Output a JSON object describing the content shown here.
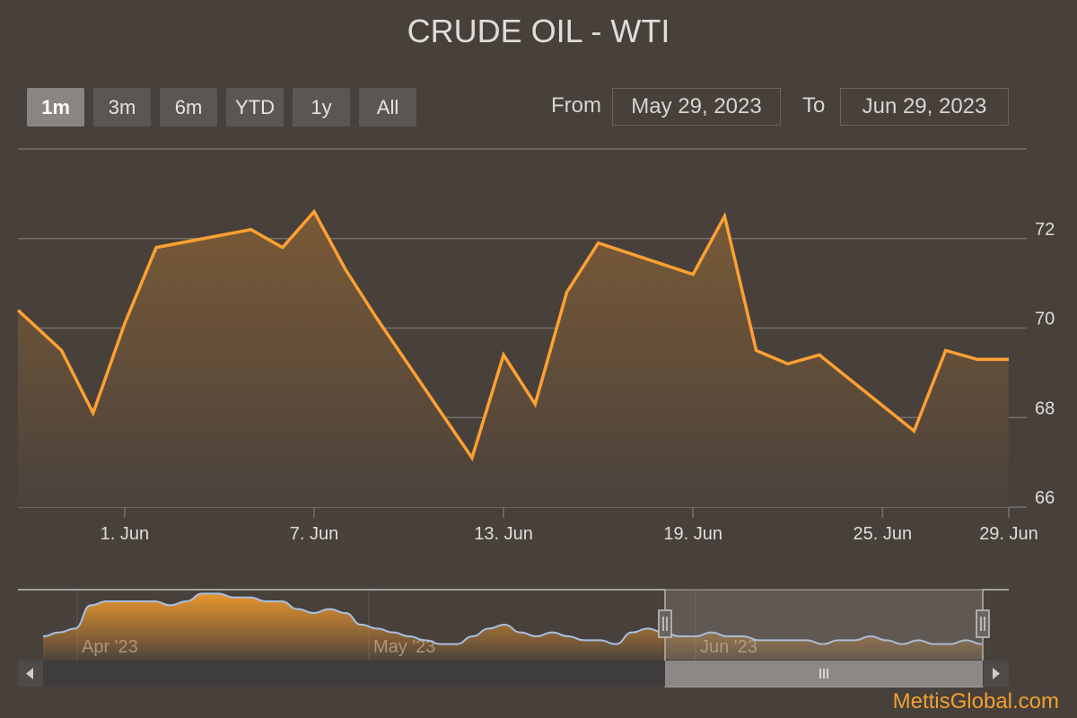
{
  "title": "CRUDE OIL - WTI",
  "range_buttons": [
    {
      "label": "1m",
      "active": true
    },
    {
      "label": "3m",
      "active": false
    },
    {
      "label": "6m",
      "active": false
    },
    {
      "label": "YTD",
      "active": false
    },
    {
      "label": "1y",
      "active": false
    },
    {
      "label": "All",
      "active": false
    }
  ],
  "date_range": {
    "from_label": "From",
    "from_value": "May 29, 2023",
    "to_label": "To",
    "to_value": "Jun 29, 2023"
  },
  "watermark": "MettisGlobal.com",
  "colors": {
    "line": "#ffa032",
    "fill_top": "#7a5a36",
    "fill_bottom": "#4a423c",
    "grid": "#75706c",
    "text": "#e0dcd8",
    "navigator_line": "#a8c0e0",
    "navigator_fill": "#e8962e"
  },
  "chart_data": {
    "type": "area",
    "title": "CRUDE OIL - WTI",
    "x": [
      "2023-05-29",
      "2023-05-30",
      "2023-05-31",
      "2023-06-01",
      "2023-06-02",
      "2023-06-05",
      "2023-06-06",
      "2023-06-07",
      "2023-06-08",
      "2023-06-09",
      "2023-06-12",
      "2023-06-13",
      "2023-06-14",
      "2023-06-15",
      "2023-06-16",
      "2023-06-19",
      "2023-06-20",
      "2023-06-21",
      "2023-06-22",
      "2023-06-23",
      "2023-06-26",
      "2023-06-27",
      "2023-06-28",
      "2023-06-29"
    ],
    "values": [
      70.4,
      69.5,
      68.1,
      70.1,
      71.8,
      72.2,
      71.8,
      72.6,
      71.3,
      70.2,
      67.1,
      69.4,
      68.3,
      70.8,
      71.9,
      71.2,
      72.5,
      69.5,
      69.2,
      69.4,
      67.7,
      69.5,
      69.3,
      69.3
    ],
    "ylim": [
      66,
      74
    ],
    "y_ticks": [
      66,
      68,
      70,
      72
    ],
    "x_tick_labels": [
      {
        "label": "1. Jun",
        "date": "2023-06-01"
      },
      {
        "label": "7. Jun",
        "date": "2023-06-07"
      },
      {
        "label": "13. Jun",
        "date": "2023-06-13"
      },
      {
        "label": "19. Jun",
        "date": "2023-06-19"
      },
      {
        "label": "25. Jun",
        "date": "2023-06-25"
      },
      {
        "label": "29. Jun",
        "date": "2023-06-29"
      }
    ],
    "grid": true,
    "legend": "none",
    "navigator": {
      "x_labels": [
        "Apr '23",
        "May '23",
        "Jun '23"
      ],
      "values": [
        71,
        72,
        73,
        79,
        80,
        80,
        80,
        80,
        79,
        80,
        82,
        82,
        81,
        81,
        80,
        80,
        78,
        77,
        78,
        77,
        74,
        73,
        72,
        71,
        70,
        69,
        69,
        71,
        73,
        74,
        72,
        71,
        72,
        71,
        70,
        70,
        69,
        72,
        73,
        72,
        71,
        71,
        72,
        71,
        71,
        70,
        70,
        70,
        70,
        69,
        70,
        70,
        71,
        70,
        69,
        70,
        69,
        69,
        70,
        69
      ]
    }
  }
}
